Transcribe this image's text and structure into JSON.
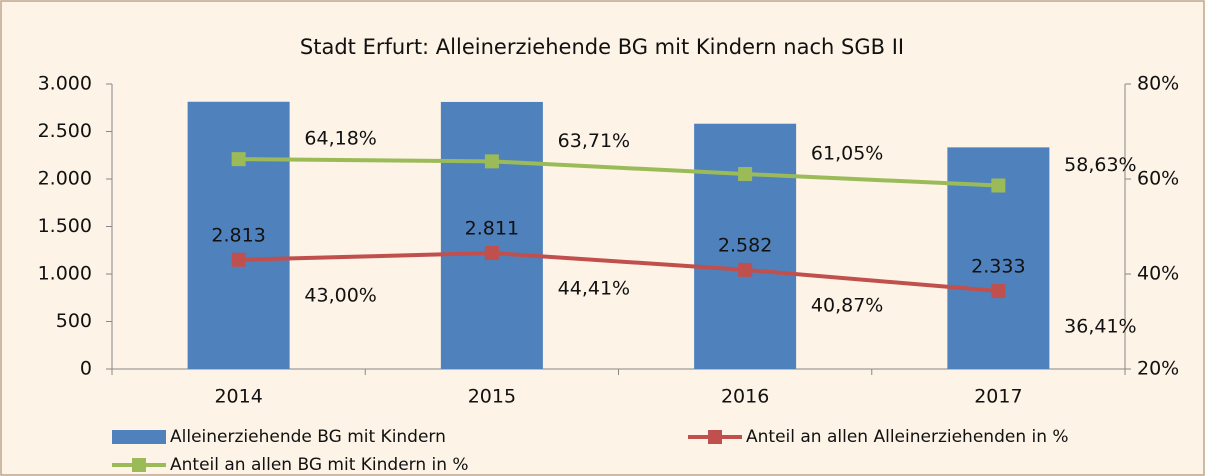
{
  "chart_data": {
    "type": "bar",
    "title": "Stadt Erfurt: Alleinerziehende BG mit Kindern nach SGB II",
    "categories": [
      "2014",
      "2015",
      "2016",
      "2017"
    ],
    "series": [
      {
        "name": "Alleinerziehende BG mit Kindern",
        "type": "bar",
        "color": "#4f81bd",
        "values": [
          2813,
          2811,
          2582,
          2333
        ],
        "value_labels": [
          "2.813",
          "2.811",
          "2.582",
          "2.333"
        ]
      },
      {
        "name": "Anteil an allen Alleinerziehenden in %",
        "type": "line",
        "axis": "y2",
        "color": "#c0504d",
        "values": [
          43.0,
          44.41,
          40.87,
          36.41
        ],
        "value_labels": [
          "43,00%",
          "44,41%",
          "40,87%",
          "36,41%"
        ]
      },
      {
        "name": "Anteil an allen BG mit Kindern in %",
        "type": "line",
        "axis": "y2",
        "color": "#9bbb59",
        "values": [
          64.18,
          63.71,
          61.05,
          58.63
        ],
        "value_labels": [
          "64,18%",
          "63,71%",
          "61,05%",
          "58,63%"
        ]
      }
    ],
    "ylim": [
      0,
      3000
    ],
    "yticks": [
      0,
      500,
      {
        "value": 1000,
        "label": "1.000"
      },
      {
        "value": 1500,
        "label": "1.500"
      },
      {
        "value": 2000,
        "label": "2.000"
      },
      {
        "value": 2500,
        "label": "2.500"
      },
      {
        "value": 3000,
        "label": "3.000"
      }
    ],
    "y2lim": [
      20,
      80
    ],
    "y2ticks": [
      {
        "value": 20,
        "label": "20%"
      },
      {
        "value": 40,
        "label": "40%"
      },
      {
        "value": 60,
        "label": "60%"
      },
      {
        "value": 80,
        "label": "80%"
      }
    ],
    "grid": false,
    "legend": "bottom"
  }
}
